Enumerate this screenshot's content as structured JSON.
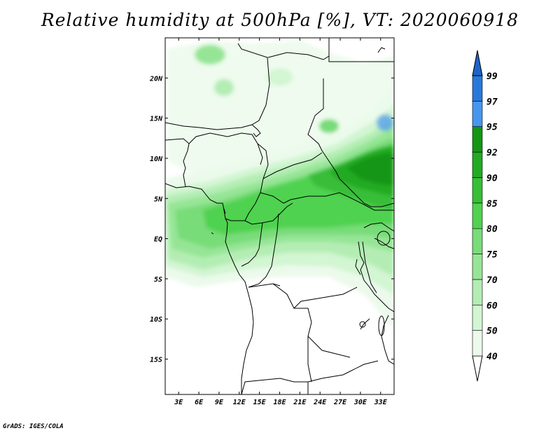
{
  "title": "Relative humidity at 500hPa [%], VT: 2020060918",
  "credit": "GrADS: IGES/COLA",
  "map": {
    "variable": "Relative humidity at 500hPa",
    "units": "%",
    "valid_time": "2020060918",
    "lon_range": [
      1,
      35
    ],
    "lat_range": [
      -19.4,
      25
    ],
    "lat_ticks": [
      {
        "value": 20,
        "label": "20N"
      },
      {
        "value": 15,
        "label": "15N"
      },
      {
        "value": 10,
        "label": "10N"
      },
      {
        "value": 5,
        "label": "5N"
      },
      {
        "value": 0,
        "label": "EQ"
      },
      {
        "value": -5,
        "label": "5S"
      },
      {
        "value": -10,
        "label": "10S"
      },
      {
        "value": -15,
        "label": "15S"
      }
    ],
    "lon_ticks": [
      {
        "value": 3,
        "label": "3E"
      },
      {
        "value": 6,
        "label": "6E"
      },
      {
        "value": 9,
        "label": "9E"
      },
      {
        "value": 12,
        "label": "12E"
      },
      {
        "value": 15,
        "label": "15E"
      },
      {
        "value": 18,
        "label": "18E"
      },
      {
        "value": 21,
        "label": "21E"
      },
      {
        "value": 24,
        "label": "24E"
      },
      {
        "value": 27,
        "label": "27E"
      },
      {
        "value": 30,
        "label": "30E"
      },
      {
        "value": 33,
        "label": "33E"
      }
    ]
  },
  "colorbar": {
    "levels": [
      {
        "label": "40",
        "color": "#ebfaeb"
      },
      {
        "label": "50",
        "color": "#d2f5d2"
      },
      {
        "label": "60",
        "color": "#b4edb4"
      },
      {
        "label": "70",
        "color": "#96e596"
      },
      {
        "label": "75",
        "color": "#78dc78"
      },
      {
        "label": "80",
        "color": "#50d250"
      },
      {
        "label": "85",
        "color": "#37be37"
      },
      {
        "label": "90",
        "color": "#23aa23"
      },
      {
        "label": "92",
        "color": "#149614"
      },
      {
        "label": "95",
        "color": "#4696f0"
      },
      {
        "label": "97",
        "color": "#2878dc"
      },
      {
        "label": "99",
        "color": "#1e64c8"
      }
    ],
    "below_color": "#ffffff",
    "above_color": "#1e64c8"
  }
}
